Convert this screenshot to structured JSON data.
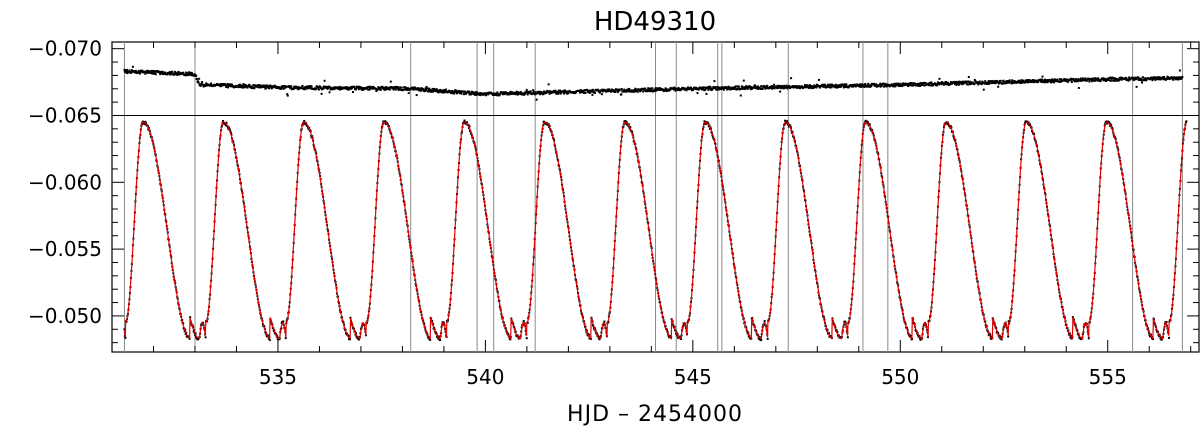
{
  "chart_data": {
    "type": "scatter",
    "title": "HD49310",
    "xlabel": "HJD – 2454000",
    "ylabel": "",
    "xlim": [
      531.0,
      557.2
    ],
    "ylim": [
      -0.0473,
      -0.0705
    ],
    "y_inverted": true,
    "grid": false,
    "legend": "none",
    "x_ticks": [
      {
        "value": 535,
        "label": "535"
      },
      {
        "value": 540,
        "label": "540"
      },
      {
        "value": 545,
        "label": "545"
      },
      {
        "value": 550,
        "label": "550"
      },
      {
        "value": 555,
        "label": "555"
      }
    ],
    "y_ticks": [
      {
        "value": -0.07,
        "label": "−0.070"
      },
      {
        "value": -0.065,
        "label": "−0.065"
      },
      {
        "value": -0.06,
        "label": "−0.060"
      },
      {
        "value": -0.055,
        "label": "−0.055"
      },
      {
        "value": -0.05,
        "label": "−0.050"
      }
    ],
    "horizontal_reference_line": -0.065,
    "vertical_markers": [
      531.3,
      533.0,
      538.2,
      539.8,
      540.2,
      541.2,
      544.1,
      544.6,
      545.6,
      545.7,
      547.3,
      549.1,
      549.7,
      555.6,
      556.8
    ],
    "series": [
      {
        "role": "data",
        "marker": "dot",
        "color": "#000000",
        "period_days": 1.935,
        "first_maximum_hjd": 531.75,
        "maximum_value": -0.0645,
        "minimum_value": -0.0483,
        "secondary_bump_value": -0.0495
      },
      {
        "role": "fit",
        "marker": "line",
        "color": "#e00000",
        "period_days": 1.935,
        "first_maximum_hjd": 531.75
      },
      {
        "role": "residuals",
        "marker": "dot",
        "color": "#000000",
        "points": [
          {
            "x": 531.3,
            "y": -0.0683
          },
          {
            "x": 533.0,
            "y": -0.0681
          },
          {
            "x": 533.1,
            "y": -0.0673
          },
          {
            "x": 535.0,
            "y": -0.0671
          },
          {
            "x": 538.2,
            "y": -0.067
          },
          {
            "x": 540.0,
            "y": -0.0666
          },
          {
            "x": 545.0,
            "y": -0.067
          },
          {
            "x": 550.0,
            "y": -0.0673
          },
          {
            "x": 555.0,
            "y": -0.0677
          },
          {
            "x": 556.8,
            "y": -0.0678
          }
        ]
      }
    ]
  }
}
